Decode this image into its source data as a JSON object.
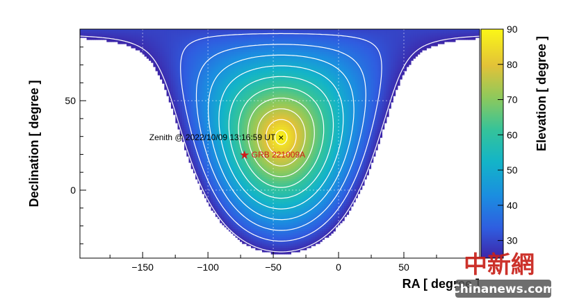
{
  "chart_data": {
    "type": "heatmap",
    "title": "",
    "xlabel": "RA [ degree ]",
    "ylabel": "Declination [ degree ]",
    "colorbar_label": "Elevation [ degree ]",
    "xlim": [
      -198,
      108
    ],
    "ylim": [
      -38,
      90
    ],
    "zlim": [
      25,
      90
    ],
    "x_ticks": [
      -150,
      -100,
      -50,
      0,
      50
    ],
    "x_tick_labels": [
      "−150",
      "−100",
      "−50",
      "0",
      "50"
    ],
    "y_ticks": [
      0,
      50
    ],
    "y_tick_labels": [
      "0",
      "50"
    ],
    "z_ticks": [
      30,
      40,
      50,
      60,
      70,
      80,
      90
    ],
    "z_tick_labels": [
      "30",
      "40",
      "50",
      "60",
      "70",
      "80",
      "90"
    ],
    "contour_levels": [
      26,
      32,
      38,
      44,
      50,
      56,
      62,
      68,
      74,
      80,
      86
    ],
    "zenith": {
      "ra": -44,
      "dec": 29.5,
      "label": "Zenith @ 2022/10/09 13:16:59 UT",
      "marker": "×"
    },
    "source": {
      "ra": -72,
      "dec": 19.8,
      "label": "GRB 221009A",
      "marker": "★"
    },
    "grid": true
  },
  "watermark": {
    "chinese": "中新網",
    "url": "Chinanews.com"
  },
  "colors": {
    "source_marker": "#d11a1a",
    "contour": "#ffffff",
    "watermark_red": "#c8211a"
  }
}
